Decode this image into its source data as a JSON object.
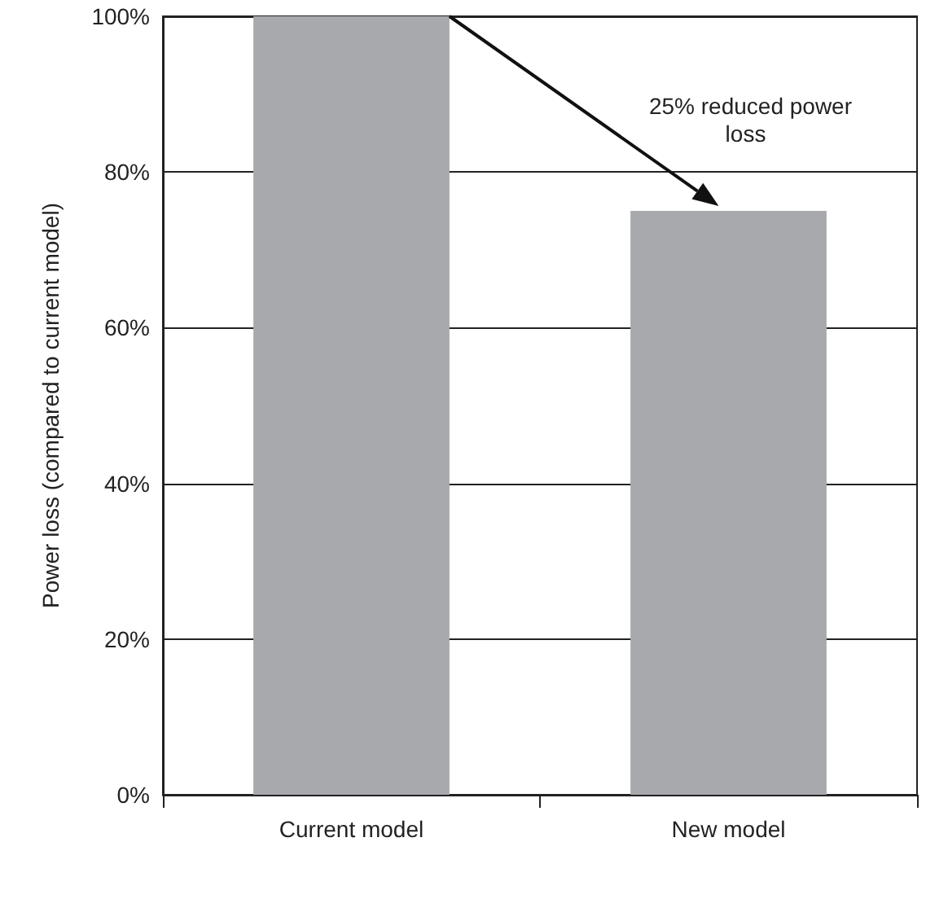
{
  "chart_data": {
    "type": "bar",
    "ylabel": "Power loss (compared to current model)",
    "categories": [
      "Current model",
      "New model"
    ],
    "values": [
      100,
      75
    ],
    "color": "#a7a9ac",
    "ylim": [
      0,
      100
    ],
    "yticks": [
      {
        "value": 0,
        "label": "0%"
      },
      {
        "value": 20,
        "label": "20%"
      },
      {
        "value": 40,
        "label": "40%"
      },
      {
        "value": 60,
        "label": "60%"
      },
      {
        "value": 80,
        "label": "80%"
      },
      {
        "value": 100,
        "label": "100%"
      }
    ],
    "grid": "y",
    "annotations": [
      "25% reduced power loss"
    ]
  }
}
